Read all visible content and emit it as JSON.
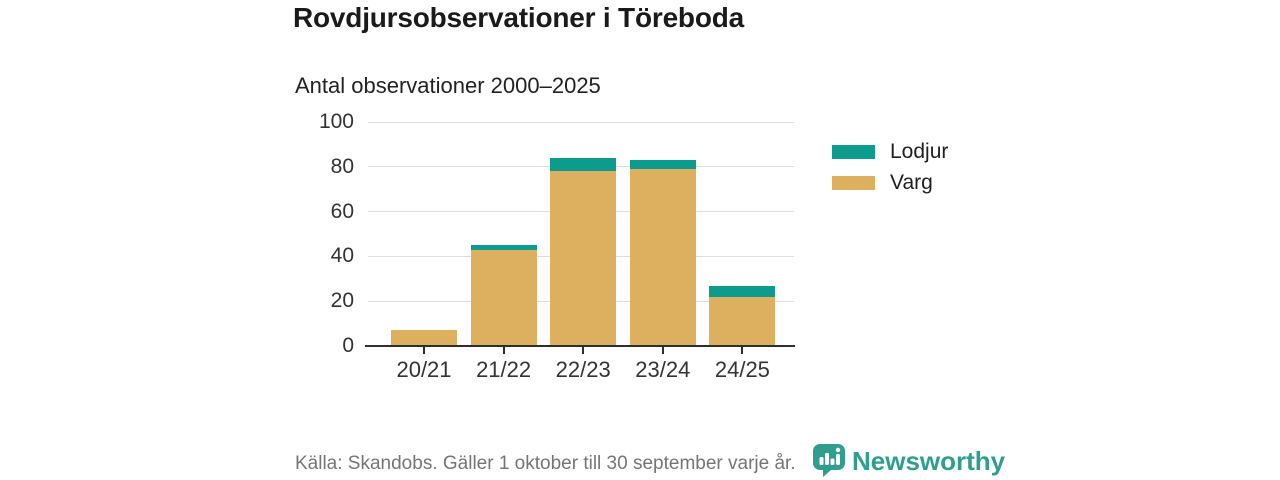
{
  "chart_data": {
    "type": "bar",
    "stacked": true,
    "title": "Rovdjursobservationer i Töreboda",
    "subtitle": "Antal observationer 2000–2025",
    "categories": [
      "20/21",
      "21/22",
      "22/23",
      "23/24",
      "24/25"
    ],
    "series": [
      {
        "name": "Lodjur",
        "color": "#0c9b8d",
        "values": [
          0,
          2,
          6,
          4,
          5
        ]
      },
      {
        "name": "Varg",
        "color": "#ddb05f",
        "values": [
          7,
          43,
          78,
          79,
          22
        ]
      }
    ],
    "xlabel": "",
    "ylabel": "",
    "ylim": [
      0,
      100
    ],
    "yticks": [
      0,
      20,
      40,
      60,
      80,
      100
    ],
    "grid": true,
    "legend_position": "right"
  },
  "footer": {
    "source": "Källa: Skandobs. Gäller 1 oktober till 30 september varje år.",
    "brand": "Newsworthy"
  },
  "colors": {
    "lodjur": "#0c9b8d",
    "varg": "#ddb05f",
    "brand_teal": "#2f9e8e",
    "gridline": "#dddddd",
    "axis": "#2e2e2e"
  }
}
